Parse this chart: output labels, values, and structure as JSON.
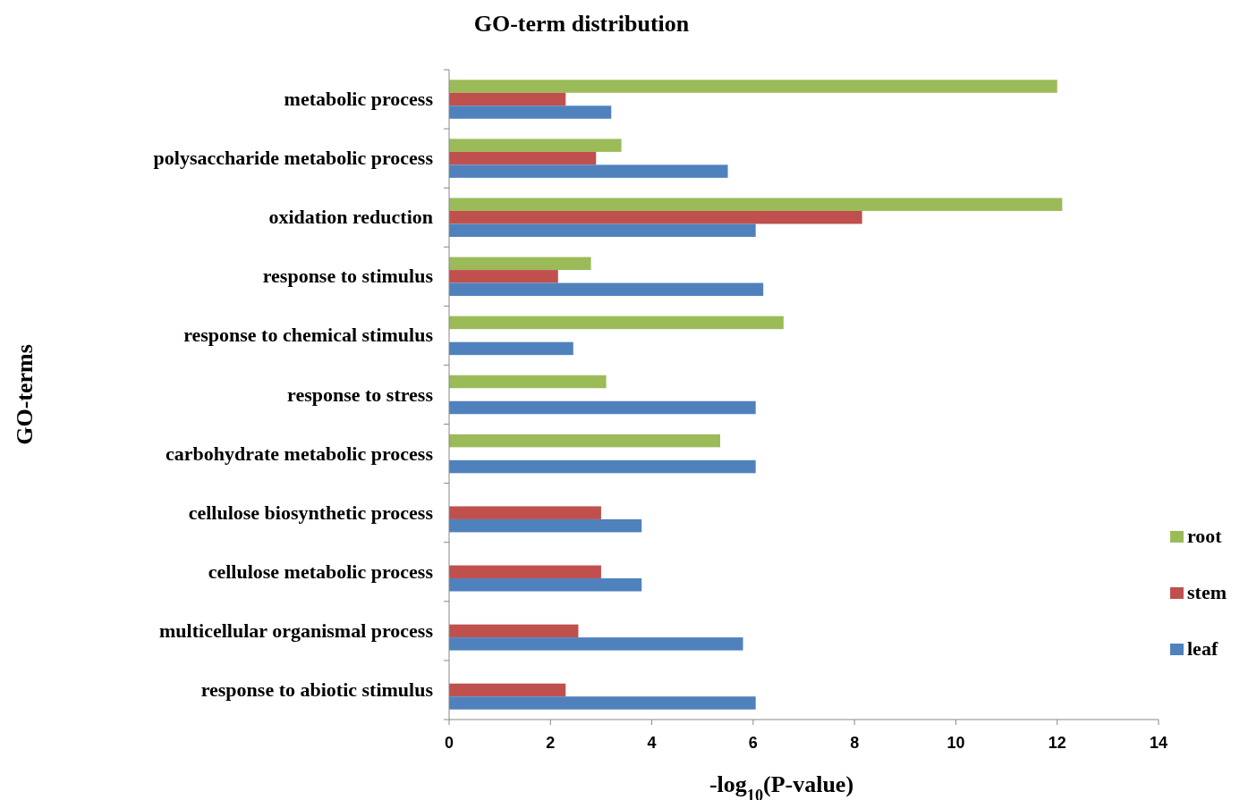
{
  "chart_data": {
    "type": "bar",
    "orientation": "horizontal",
    "title": "GO-term distribution",
    "xlabel": "-log$_{10}$(P-value)",
    "ylabel": "GO-terms",
    "categories": [
      "metabolic process",
      "polysaccharide metabolic process",
      "oxidation reduction",
      "response to stimulus",
      "response to chemical stimulus",
      "response to stress",
      "carbohydrate metabolic process",
      "cellulose biosynthetic process",
      "cellulose metabolic process",
      "multicellular organismal process",
      "response to abiotic stimulus"
    ],
    "series": [
      {
        "name": "root",
        "color": "#9bbb59",
        "values": [
          12.0,
          3.4,
          12.1,
          2.8,
          6.6,
          3.1,
          5.35,
          null,
          null,
          null,
          null
        ]
      },
      {
        "name": "stem",
        "color": "#c0504d",
        "values": [
          2.3,
          2.9,
          8.15,
          2.15,
          null,
          null,
          null,
          3.0,
          3.0,
          2.55,
          2.3
        ]
      },
      {
        "name": "leaf",
        "color": "#4f81bd",
        "values": [
          3.2,
          5.5,
          6.05,
          6.2,
          2.45,
          6.05,
          6.05,
          3.8,
          3.8,
          5.8,
          6.05
        ]
      }
    ],
    "xlim": [
      0,
      14
    ],
    "xticks": [
      0,
      2,
      4,
      6,
      8,
      10,
      12,
      14
    ],
    "grid": false,
    "legend": "right"
  }
}
